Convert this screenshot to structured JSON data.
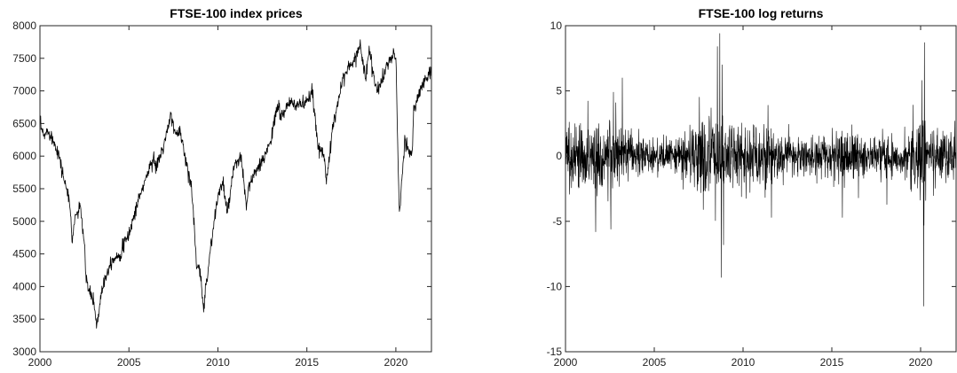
{
  "chart_data": [
    {
      "type": "line",
      "title": "FTSE-100 index prices",
      "xlabel": "",
      "ylabel": "",
      "xlim": [
        2000,
        2022
      ],
      "ylim": [
        3000,
        8000
      ],
      "xticks": [
        2000,
        2005,
        2010,
        2015,
        2020
      ],
      "yticks": [
        3000,
        3500,
        4000,
        4500,
        5000,
        5500,
        6000,
        6500,
        7000,
        7500,
        8000
      ],
      "grid": false,
      "color": "#000000",
      "series": [
        {
          "x": [
            2000.0,
            2000.2,
            2000.5,
            2000.8,
            2001.0,
            2001.3,
            2001.5,
            2001.7,
            2001.8,
            2002.0,
            2002.3,
            2002.5,
            2002.6,
            2002.8,
            2003.0,
            2003.2,
            2003.5,
            2004.0,
            2004.5,
            2005.0,
            2005.5,
            2006.0,
            2006.4,
            2006.5,
            2007.0,
            2007.4,
            2007.6,
            2007.9,
            2008.2,
            2008.5,
            2008.7,
            2008.8,
            2009.0,
            2009.2,
            2009.5,
            2010.0,
            2010.3,
            2010.5,
            2010.9,
            2011.3,
            2011.6,
            2011.7,
            2012.0,
            2012.5,
            2013.0,
            2013.4,
            2013.5,
            2014.0,
            2014.5,
            2015.0,
            2015.3,
            2015.6,
            2016.0,
            2016.1,
            2016.5,
            2017.0,
            2017.5,
            2018.0,
            2018.3,
            2018.5,
            2018.9,
            2019.0,
            2019.5,
            2019.9,
            2020.0,
            2020.2,
            2020.5,
            2020.9,
            2021.0,
            2021.5,
            2021.9
          ],
          "y": [
            6500,
            6300,
            6400,
            6200,
            6100,
            5700,
            5500,
            5200,
            4700,
            5100,
            5200,
            4600,
            4100,
            3900,
            3800,
            3400,
            4000,
            4400,
            4500,
            4800,
            5300,
            5700,
            6000,
            5800,
            6200,
            6650,
            6300,
            6400,
            5900,
            5600,
            4800,
            4300,
            4200,
            3700,
            4400,
            5400,
            5600,
            5100,
            5800,
            6000,
            5200,
            5500,
            5700,
            5900,
            6300,
            6800,
            6600,
            6800,
            6800,
            6800,
            7000,
            6200,
            6000,
            5600,
            6500,
            7200,
            7400,
            7700,
            7200,
            7650,
            7000,
            7000,
            7400,
            7550,
            7500,
            5100,
            6200,
            6000,
            6700,
            7100,
            7300
          ]
        }
      ]
    },
    {
      "type": "line",
      "title": "FTSE-100 log returns",
      "xlabel": "",
      "ylabel": "",
      "xlim": [
        2000,
        2022
      ],
      "ylim": [
        -15,
        10
      ],
      "xticks": [
        2000,
        2005,
        2010,
        2015,
        2020
      ],
      "yticks": [
        -15,
        -10,
        -5,
        0,
        5,
        10
      ],
      "grid": false,
      "color": "#000000",
      "volatility_profile": {
        "x": [
          2000,
          2001,
          2002,
          2003,
          2004,
          2005,
          2006,
          2007,
          2008,
          2009,
          2010,
          2011,
          2012,
          2013,
          2014,
          2015,
          2016,
          2017,
          2018,
          2019,
          2020,
          2021,
          2022
        ],
        "sigma": [
          1.3,
          1.35,
          1.8,
          1.5,
          0.8,
          0.65,
          0.8,
          1.2,
          2.2,
          1.6,
          1.2,
          1.45,
          0.95,
          0.8,
          0.75,
          1.05,
          1.2,
          0.65,
          0.9,
          0.85,
          2.0,
          1.0,
          1.0
        ]
      },
      "extremes": [
        {
          "x": 2008.69,
          "y": 9.4
        },
        {
          "x": 2008.78,
          "y": -9.3
        },
        {
          "x": 2008.55,
          "y": 8.4
        },
        {
          "x": 2008.82,
          "y": 7.0
        },
        {
          "x": 2008.9,
          "y": -6.8
        },
        {
          "x": 2020.17,
          "y": -11.5
        },
        {
          "x": 2020.21,
          "y": 8.7
        },
        {
          "x": 2020.19,
          "y": -5.3
        },
        {
          "x": 2002.55,
          "y": -5.6
        },
        {
          "x": 2002.7,
          "y": 4.9
        },
        {
          "x": 2003.2,
          "y": 6.0
        },
        {
          "x": 2001.7,
          "y": -5.8
        },
        {
          "x": 2011.6,
          "y": -4.7
        },
        {
          "x": 2011.4,
          "y": 3.9
        },
        {
          "x": 2015.6,
          "y": -4.7
        },
        {
          "x": 2016.5,
          "y": -3.2
        },
        {
          "x": 2018.1,
          "y": -3.7
        }
      ]
    }
  ]
}
